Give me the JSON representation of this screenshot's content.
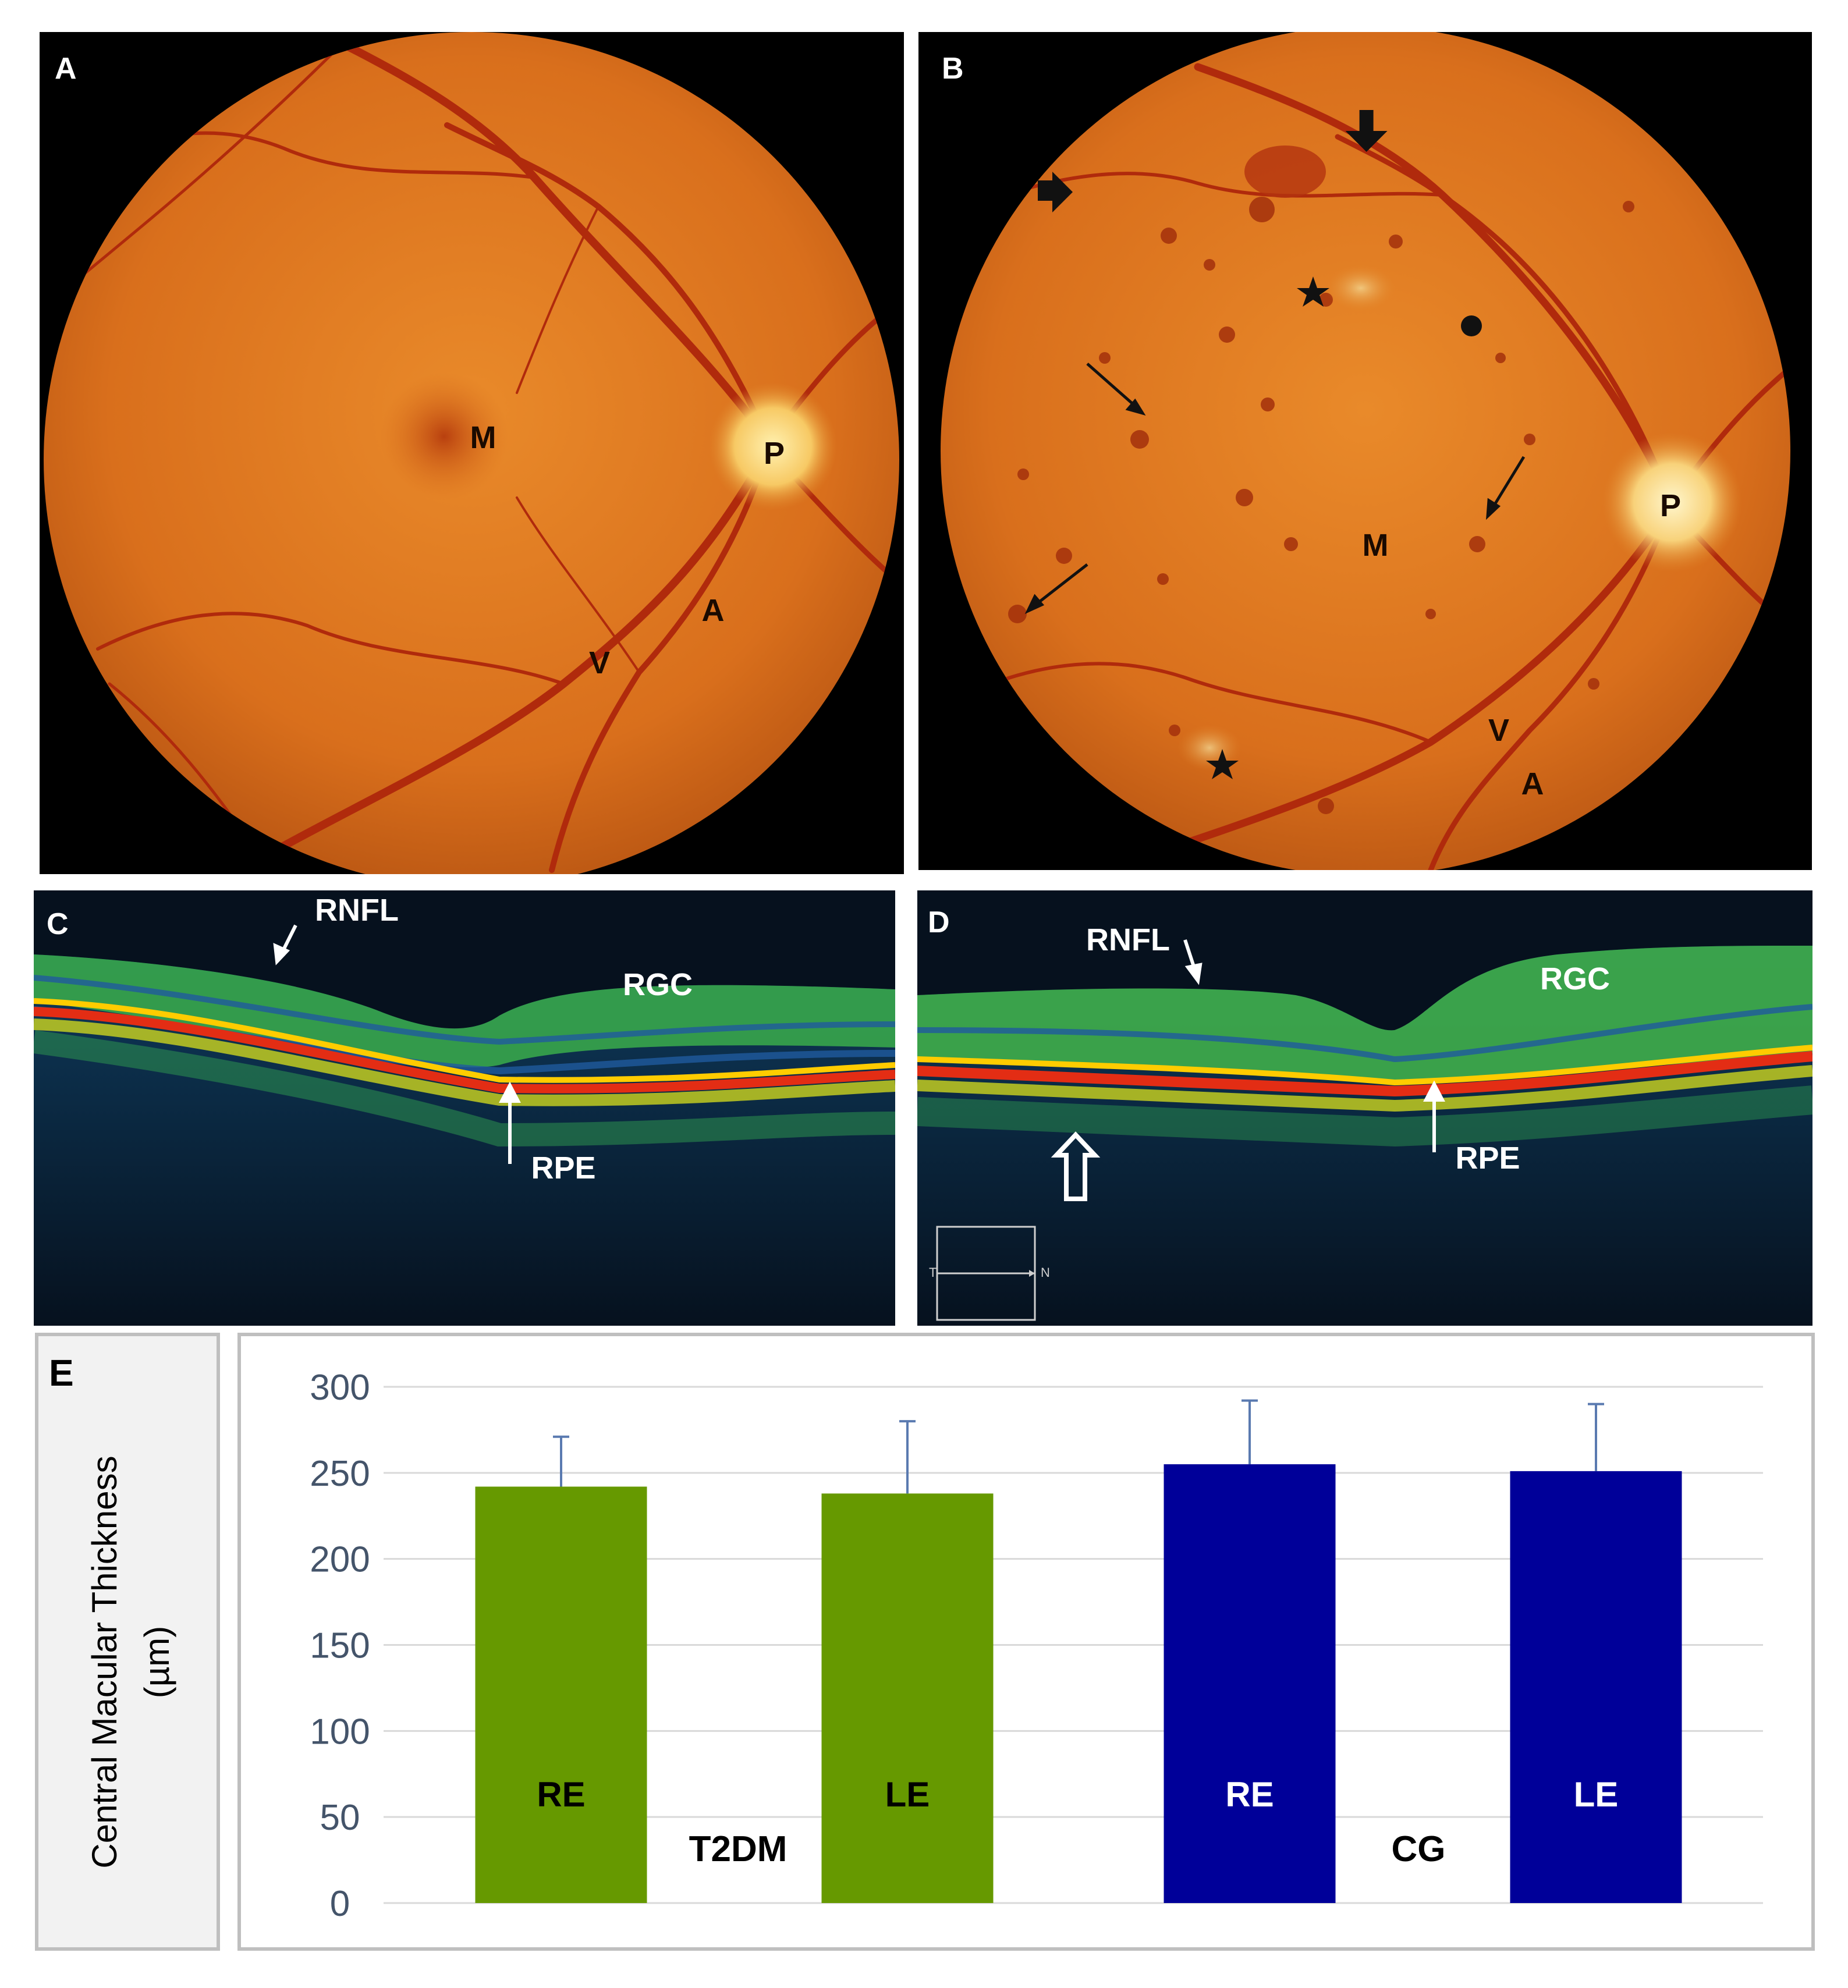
{
  "figure": {
    "panels": {
      "a": {
        "letter": "A",
        "labels": {
          "macula": "M",
          "papilla": "P",
          "artery": "A",
          "vein": "V"
        }
      },
      "b": {
        "letter": "B",
        "labels": {
          "macula": "M",
          "papilla": "P",
          "artery": "A",
          "vein": "V"
        }
      },
      "c": {
        "letter": "C",
        "labels": {
          "rnfl": "RNFL",
          "rgc": "RGC",
          "rpe": "RPE"
        }
      },
      "d": {
        "letter": "D",
        "labels": {
          "rnfl": "RNFL",
          "rgc": "RGC",
          "rpe": "RPE"
        },
        "scan_guide": {
          "left": "T",
          "right": "N"
        }
      },
      "e": {
        "letter": "E"
      }
    }
  },
  "chart_data": {
    "type": "bar",
    "ylabel_line1": "Central Macular Thickness",
    "ylabel_line2": "(µm)",
    "ylim": [
      0,
      300
    ],
    "yticks": [
      0,
      50,
      100,
      150,
      200,
      250,
      300
    ],
    "grid": true,
    "groups": [
      {
        "name": "T2DM",
        "color": "#669900",
        "bars": [
          {
            "label": "RE",
            "value": 242,
            "error": 29
          },
          {
            "label": "LE",
            "value": 238,
            "error": 42
          }
        ]
      },
      {
        "name": "CG",
        "color": "#000099",
        "bars": [
          {
            "label": "RE",
            "value": 255,
            "error": 37
          },
          {
            "label": "LE",
            "value": 251,
            "error": 39
          }
        ]
      }
    ]
  },
  "colors": {
    "fundus_orange": "#e2781f",
    "vessel_red": "#b02a0c",
    "oct_background": "#06111e",
    "t2dm_green": "#669900",
    "cg_blue": "#000099",
    "grid": "#d9d9d9",
    "tick_text": "#44546a"
  }
}
